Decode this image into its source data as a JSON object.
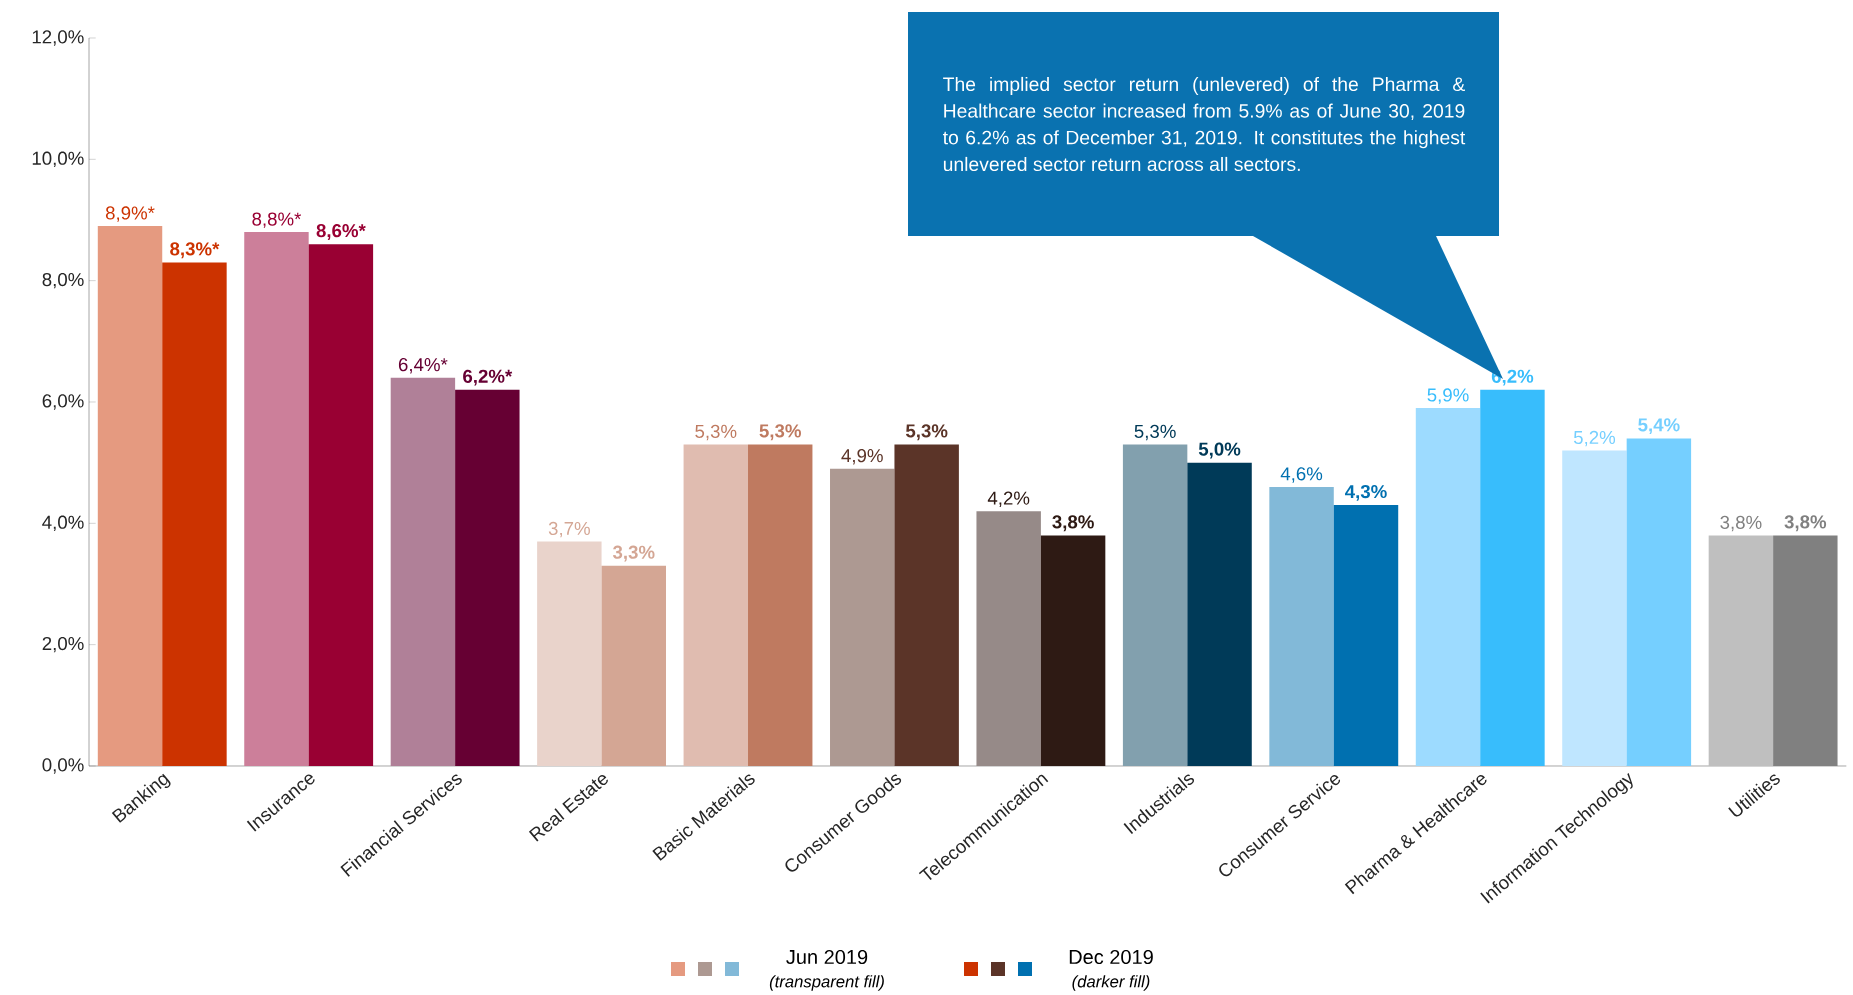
{
  "chart_data": {
    "type": "bar",
    "categories": [
      "Banking",
      "Insurance",
      "Financial Services",
      "Real Estate",
      "Basic Materials",
      "Consumer Goods",
      "Telecommunication",
      "Industrials",
      "Consumer Service",
      "Pharma & Healthcare",
      "Information Technology",
      "Utilities"
    ],
    "series": [
      {
        "name": "Jun 2019",
        "colors": [
          "#e59a80",
          "#cc7f9a",
          "#b08098",
          "#e9d3cb",
          "#e0bcb0",
          "#ad9992",
          "#968a88",
          "#82a0ae",
          "#82b9d8",
          "#9ddbff",
          "#bfe6ff",
          "#bfbfbf"
        ],
        "values": [
          8.9,
          8.8,
          6.4,
          3.7,
          5.3,
          4.9,
          4.2,
          5.3,
          4.6,
          5.9,
          5.2,
          3.8
        ],
        "value_labels": [
          "8,9%*",
          "8,8%*",
          "6,4%*",
          "3,7%",
          "5,3%",
          "4,9%",
          "4,2%",
          "5,3%",
          "4,6%",
          "5,9%",
          "5,2%",
          "3,8%"
        ]
      },
      {
        "name": "Dec 2019",
        "colors": [
          "#cc3300",
          "#990033",
          "#660033",
          "#d4a694",
          "#bf7a60",
          "#5b3428",
          "#2e1a14",
          "#003a58",
          "#0070b0",
          "#38bdfc",
          "#75cfff",
          "#808080"
        ],
        "values": [
          8.3,
          8.6,
          6.2,
          3.3,
          5.3,
          5.3,
          3.8,
          5.0,
          4.3,
          6.2,
          5.4,
          3.8
        ],
        "value_labels": [
          "8,3%*",
          "8,6%*",
          "6,2%*",
          "3,3%",
          "5,3%",
          "5,3%",
          "3,8%",
          "5,0%",
          "4,3%",
          "6,2%",
          "5,4%",
          "3,8%"
        ]
      }
    ],
    "ylim": [
      0,
      12
    ],
    "yticks": [
      {
        "value": 0,
        "label": "0,0%"
      },
      {
        "value": 2,
        "label": "2,0%"
      },
      {
        "value": 4,
        "label": "4,0%"
      },
      {
        "value": 6,
        "label": "6,0%"
      },
      {
        "value": 8,
        "label": "8,0%"
      },
      {
        "value": 10,
        "label": "10,0%"
      },
      {
        "value": 12,
        "label": "12,0%"
      }
    ],
    "legend": "bottom",
    "annotations": [
      "The implied sector return (unlevered) of the Pharma & Healthcare sector increased from 5.9% as of June 30, 2019 to 6.2% as of December 31, 2019. It constitutes the highest unlevered sector return across all sectors.",
      "(transparent fill)",
      "(darker fill)"
    ]
  }
}
